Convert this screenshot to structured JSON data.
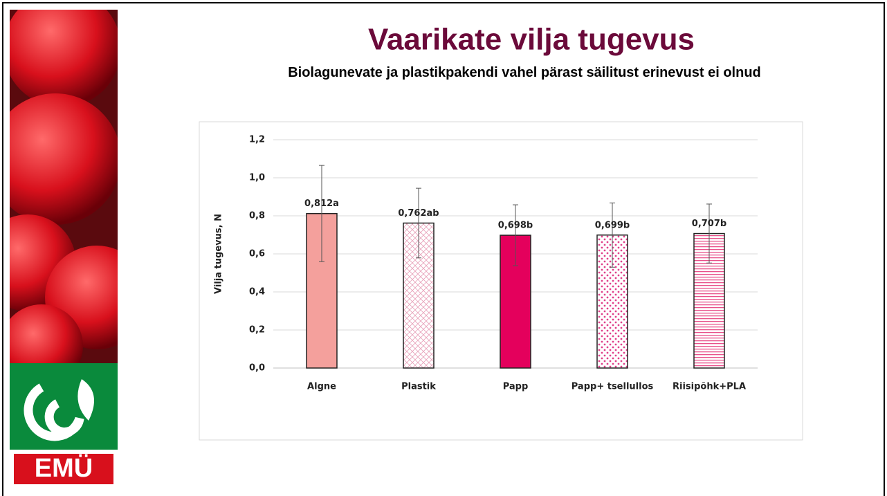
{
  "logo_text": "EMÜ",
  "chart_data": {
    "type": "bar",
    "title": "Vaarikate vilja tugevus",
    "subtitle": "Biolagunevate ja plastikpakendi vahel pärast säilitust erinevust ei olnud",
    "y_label": "Vilja tugevus, N",
    "categories": [
      "Algne",
      "Plastik",
      "Papp",
      "Papp+ tsellullos",
      "Riisipõhk+PLA"
    ],
    "values": [
      0.812,
      0.762,
      0.698,
      0.699,
      0.707
    ],
    "value_labels": [
      "0,812a",
      "0,762ab",
      "0,698b",
      "0,699b",
      "0,707b"
    ],
    "errors": [
      0.253,
      0.183,
      0.16,
      0.169,
      0.155
    ],
    "colors": [
      "#f4a09c",
      "#e8a0b8",
      "#e4005c",
      "#e0408a",
      "#e8508a"
    ],
    "patterns": [
      "solid",
      "crosshatch",
      "solid",
      "dots",
      "stripes"
    ],
    "ylim": [
      0,
      1.2
    ],
    "yticks": [
      {
        "value": 0,
        "label": "0,0"
      },
      {
        "value": 0.2,
        "label": "0,2"
      },
      {
        "value": 0.4,
        "label": "0,4"
      },
      {
        "value": 0.6,
        "label": "0,6"
      },
      {
        "value": 0.8,
        "label": "0,8"
      },
      {
        "value": 1.0,
        "label": "1,0"
      },
      {
        "value": 1.2,
        "label": "1,2"
      }
    ],
    "grid": true
  }
}
